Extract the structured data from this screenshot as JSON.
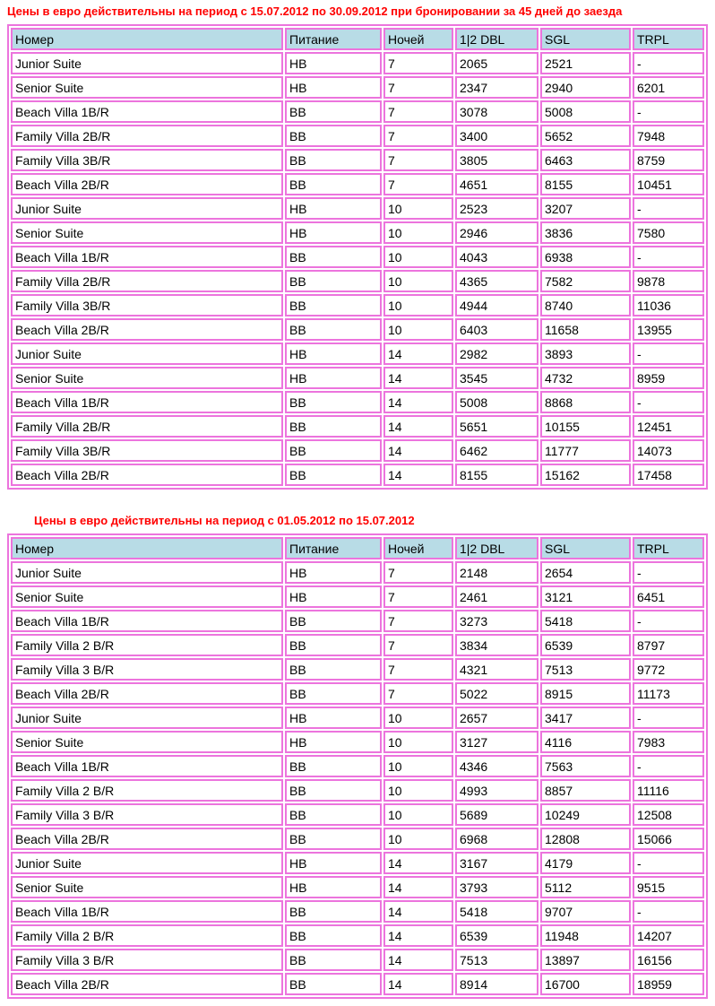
{
  "colors": {
    "table_border": "#ec74dd",
    "header_bg": "#b8dce6",
    "title_red": "#ff0000"
  },
  "tables": [
    {
      "title": "Цены в евро действительны на период с 15.07.2012 по 30.09.2012 при бронировании за 45 дней до заезда",
      "columns": [
        "Номер",
        "Питание",
        "Ночей",
        "1|2 DBL",
        "SGL",
        "TRPL"
      ],
      "rows": [
        [
          "Junior Suite",
          "HB",
          "7",
          "2065",
          "2521",
          "-"
        ],
        [
          "Senior Suite",
          "HB",
          "7",
          "2347",
          "2940",
          "6201"
        ],
        [
          "Beach Villa 1B/R",
          "BB",
          "7",
          "3078",
          "5008",
          "-"
        ],
        [
          "Family Villa 2B/R",
          "BB",
          "7",
          "3400",
          "5652",
          "7948"
        ],
        [
          "Family Villa 3B/R",
          "BB",
          "7",
          "3805",
          "6463",
          "8759"
        ],
        [
          "Beach Villa 2B/R",
          "BB",
          "7",
          "4651",
          "8155",
          "10451"
        ],
        [
          "Junior Suite",
          "HB",
          "10",
          "2523",
          "3207",
          "-"
        ],
        [
          "Senior Suite",
          "HB",
          "10",
          "2946",
          "3836",
          "7580"
        ],
        [
          "Beach Villa 1B/R",
          "BB",
          "10",
          "4043",
          "6938",
          "-"
        ],
        [
          "Family Villa 2B/R",
          "BB",
          "10",
          "4365",
          "7582",
          "9878"
        ],
        [
          "Family Villa 3B/R",
          "BB",
          "10",
          "4944",
          "8740",
          "11036"
        ],
        [
          "Beach Villa 2B/R",
          "BB",
          "10",
          "6403",
          "11658",
          "13955"
        ],
        [
          "Junior Suite",
          "HB",
          "14",
          "2982",
          "3893",
          "-"
        ],
        [
          "Senior Suite",
          "HB",
          "14",
          "3545",
          "4732",
          "8959"
        ],
        [
          "Beach Villa 1B/R",
          "BB",
          "14",
          "5008",
          "8868",
          "-"
        ],
        [
          "Family Villa 2B/R",
          "BB",
          "14",
          "5651",
          "10155",
          "12451"
        ],
        [
          "Family Villa 3B/R",
          "BB",
          "14",
          "6462",
          "11777",
          "14073"
        ],
        [
          "Beach Villa 2B/R",
          "BB",
          "14",
          "8155",
          "15162",
          "17458"
        ]
      ]
    },
    {
      "title": "Цены в евро действительны на период с 01.05.2012 по 15.07.2012",
      "columns": [
        "Номер",
        "Питание",
        "Ночей",
        "1|2 DBL",
        "SGL",
        "TRPL"
      ],
      "rows": [
        [
          "Junior Suite",
          "HB",
          "7",
          "2148",
          "2654",
          "-"
        ],
        [
          "Senior Suite",
          "HB",
          "7",
          "2461",
          "3121",
          "6451"
        ],
        [
          "Beach Villa 1B/R",
          "BB",
          "7",
          "3273",
          "5418",
          "-"
        ],
        [
          "Family Villa 2 B/R",
          "BB",
          "7",
          "3834",
          "6539",
          "8797"
        ],
        [
          "Family Villa 3 B/R",
          "BB",
          "7",
          "4321",
          "7513",
          "9772"
        ],
        [
          "Beach Villa 2B/R",
          "BB",
          "7",
          "5022",
          "8915",
          "11173"
        ],
        [
          "Junior Suite",
          "HB",
          "10",
          "2657",
          "3417",
          "-"
        ],
        [
          "Senior Suite",
          "HB",
          "10",
          "3127",
          "4116",
          "7983"
        ],
        [
          "Beach Villa 1B/R",
          "BB",
          "10",
          "4346",
          "7563",
          "-"
        ],
        [
          "Family Villa 2 B/R",
          "BB",
          "10",
          "4993",
          "8857",
          "11116"
        ],
        [
          "Family Villa 3 B/R",
          "BB",
          "10",
          "5689",
          "10249",
          "12508"
        ],
        [
          "Beach Villa 2B/R",
          "BB",
          "10",
          "6968",
          "12808",
          "15066"
        ],
        [
          "Junior Suite",
          "HB",
          "14",
          "3167",
          "4179",
          "-"
        ],
        [
          "Senior Suite",
          "HB",
          "14",
          "3793",
          "5112",
          "9515"
        ],
        [
          "Beach Villa 1B/R",
          "BB",
          "14",
          "5418",
          "9707",
          "-"
        ],
        [
          "Family Villa 2 B/R",
          "BB",
          "14",
          "6539",
          "11948",
          "14207"
        ],
        [
          "Family Villa 3 B/R",
          "BB",
          "14",
          "7513",
          "13897",
          "16156"
        ],
        [
          "Beach Villa 2B/R",
          "BB",
          "14",
          "8914",
          "16700",
          "18959"
        ]
      ]
    }
  ]
}
